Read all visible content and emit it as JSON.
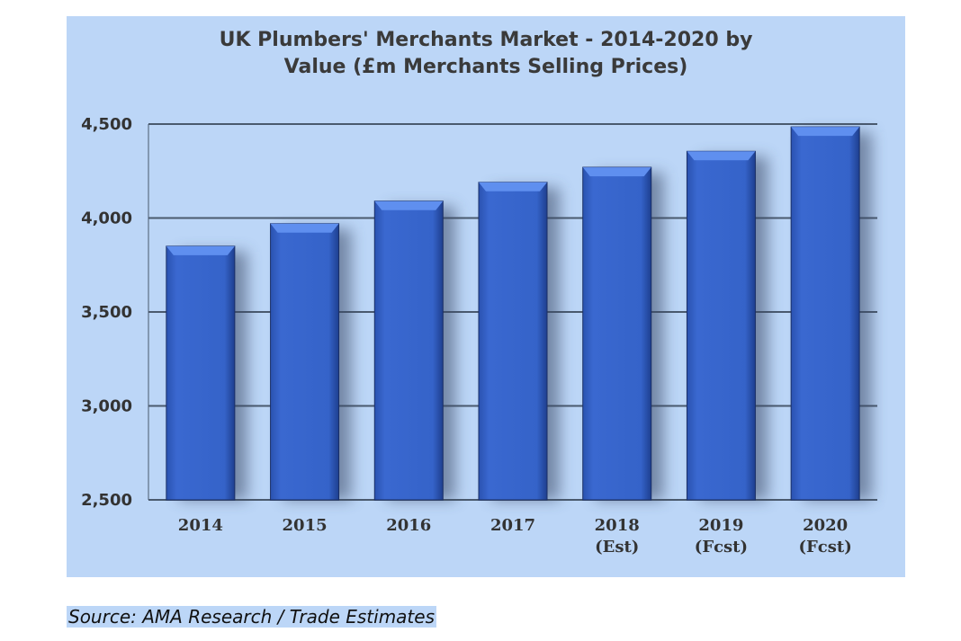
{
  "chart_data": {
    "type": "bar",
    "title": "UK Plumbers' Merchants Market - 2014-2020 by Value (£m Merchants Selling Prices)",
    "title_lines": [
      "UK Plumbers' Merchants Market - 2014-2020 by",
      "Value (£m Merchants Selling Prices)"
    ],
    "categories": [
      [
        "2014"
      ],
      [
        "2015"
      ],
      [
        "2016"
      ],
      [
        "2017"
      ],
      [
        "2018",
        "(Est)"
      ],
      [
        "2019",
        "(Fcst)"
      ],
      [
        "2020",
        "(Fcst)"
      ]
    ],
    "values": [
      3850,
      3970,
      4090,
      4190,
      4270,
      4355,
      4485
    ],
    "ylim": [
      2500,
      4500
    ],
    "yticks": [
      2500,
      3000,
      3500,
      4000,
      4500
    ],
    "ytick_labels": [
      "2,500",
      "3,000",
      "3,500",
      "4,000",
      "4,500"
    ],
    "xlabel": "",
    "ylabel": "",
    "grid": true,
    "colors": {
      "bar": "#3563c9",
      "background": "#bcd6f7",
      "grid": "#4a5a6e"
    }
  },
  "source": "Source: AMA Research / Trade Estimates"
}
